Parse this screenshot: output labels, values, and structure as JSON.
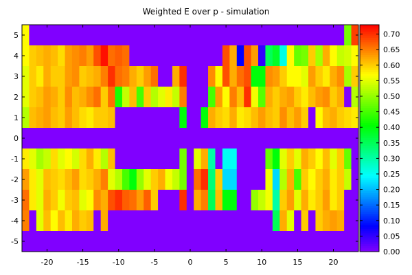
{
  "chart_data": {
    "type": "heatmap",
    "title": "Weighted E over p - simulation",
    "xlabel": "",
    "ylabel": "",
    "xlim": [
      -23.5,
      23.5
    ],
    "ylim": [
      -5.5,
      5.5
    ],
    "x_ticks": [
      -20,
      -15,
      -10,
      -5,
      0,
      5,
      10,
      15,
      20
    ],
    "x_tick_labels": [
      "-20",
      "-15",
      "-10",
      "-5",
      "0",
      "5",
      "10",
      "15",
      "20"
    ],
    "y_ticks": [
      5,
      4,
      3,
      2,
      1,
      0,
      -1,
      -2,
      -3,
      -4,
      -5
    ],
    "y_tick_labels": [
      "5",
      "4",
      "3",
      "2",
      "1",
      "0",
      "-1",
      "-2",
      "-3",
      "-4",
      "-5"
    ],
    "colorbar": {
      "min": 0.0,
      "max": 0.73,
      "colormap": "rainbow",
      "ticks": [
        0.0,
        0.05,
        0.1,
        0.15,
        0.2,
        0.25,
        0.3,
        0.35,
        0.4,
        0.45,
        0.5,
        0.55,
        0.6,
        0.65,
        0.7
      ],
      "tick_labels": [
        "0.00",
        "0.05",
        "0.10",
        "0.15",
        "0.20",
        "0.25",
        "0.30",
        "0.35",
        "0.40",
        "0.45",
        "0.50",
        "0.55",
        "0.60",
        "0.65",
        "0.70"
      ]
    },
    "x": [
      -23,
      -22,
      -21,
      -20,
      -19,
      -18,
      -17,
      -16,
      -15,
      -14,
      -13,
      -12,
      -11,
      -10,
      -9,
      -8,
      -7,
      -6,
      -5,
      -4,
      -3,
      -2,
      -1,
      0,
      1,
      2,
      3,
      4,
      5,
      6,
      7,
      8,
      9,
      10,
      11,
      12,
      13,
      14,
      15,
      16,
      17,
      18,
      19,
      20,
      21,
      22,
      23
    ],
    "y": [
      5,
      4,
      3,
      2,
      1,
      0,
      -1,
      -2,
      -3,
      -4,
      -5
    ],
    "z": [
      [
        0.57,
        0,
        0,
        0,
        0,
        0,
        0,
        0,
        0,
        0,
        0,
        0,
        0,
        0,
        0,
        0,
        0,
        0,
        0,
        0,
        0,
        0,
        0,
        0,
        0,
        0,
        0,
        0,
        0,
        0,
        0,
        0,
        0,
        0,
        0,
        0,
        0,
        0,
        0,
        0,
        0,
        0,
        0,
        0,
        0,
        0.48,
        0.69
      ],
      [
        0.57,
        0.6,
        0.61,
        0.62,
        0.61,
        0.59,
        0.63,
        0.64,
        0.65,
        0.63,
        0.68,
        0.72,
        0.66,
        0.67,
        0.66,
        0,
        0,
        0,
        0,
        0,
        0,
        0,
        0,
        0,
        0,
        0,
        0,
        0,
        0.68,
        0.62,
        0.08,
        0.68,
        0.63,
        0.05,
        0.35,
        0.38,
        0.26,
        0.57,
        0.47,
        0.48,
        0.6,
        0.51,
        0.62,
        0.57,
        0.53,
        0.54,
        0.57
      ],
      [
        0.55,
        0.6,
        0.58,
        0.62,
        0.6,
        0.6,
        0.63,
        0.64,
        0.6,
        0.61,
        0.62,
        0.65,
        0.7,
        0.66,
        0.65,
        0.62,
        0.6,
        0.63,
        0.66,
        0,
        0,
        0.62,
        0.7,
        0,
        0,
        0,
        0.64,
        0.57,
        0.68,
        0.62,
        0.66,
        0.68,
        0.4,
        0.4,
        0.64,
        0.63,
        0.6,
        0.57,
        0.57,
        0.55,
        0.63,
        0.6,
        0.58,
        0.62,
        0.64,
        0.51,
        0.6
      ],
      [
        0.55,
        0.6,
        0.61,
        0.63,
        0.62,
        0.6,
        0.64,
        0.61,
        0.62,
        0.64,
        0.66,
        0.6,
        0.66,
        0.42,
        0.53,
        0.61,
        0.45,
        0.6,
        0.52,
        0.55,
        0.58,
        0.53,
        0.65,
        0,
        0,
        0,
        0.45,
        0.63,
        0.57,
        0.65,
        0.61,
        0.7,
        0.56,
        0.46,
        0.62,
        0.6,
        0.62,
        0.63,
        0.6,
        0.58,
        0.61,
        0.63,
        0.64,
        0.6,
        0.62,
        0,
        0.52
      ],
      [
        0.52,
        0.61,
        0.62,
        0.63,
        0.61,
        0.6,
        0.63,
        0.61,
        0.59,
        0.58,
        0.6,
        0.6,
        0.61,
        0,
        0,
        0,
        0,
        0,
        0,
        0,
        0,
        0,
        0.4,
        0,
        0,
        0.4,
        0.62,
        0.6,
        0.59,
        0.62,
        0.58,
        0.59,
        0.61,
        0.63,
        0.61,
        0.6,
        0.64,
        0.61,
        0.63,
        0.6,
        0,
        0.57,
        0.61,
        0.62,
        0.6,
        0.59,
        0.58
      ],
      [
        0,
        0,
        0,
        0,
        0,
        0,
        0,
        0,
        0,
        0,
        0,
        0,
        0,
        0,
        0,
        0,
        0,
        0,
        0,
        0,
        0,
        0,
        0,
        0,
        0,
        0,
        0,
        0,
        0,
        0,
        0,
        0,
        0,
        0,
        0,
        0,
        0,
        0,
        0,
        0,
        0,
        0,
        0,
        0,
        0,
        0,
        0
      ],
      [
        0.58,
        0.55,
        0.51,
        0.53,
        0.59,
        0.55,
        0.57,
        0.54,
        0.59,
        0.62,
        0.58,
        0.52,
        0.61,
        0,
        0,
        0,
        0,
        0,
        0,
        0,
        0,
        0,
        0.48,
        0,
        0.55,
        0.62,
        0.3,
        0,
        0.25,
        0.25,
        0,
        0,
        0,
        0,
        0.47,
        0.4,
        0.55,
        0.6,
        0.55,
        0.62,
        0.6,
        0.57,
        0.61,
        0.55,
        0.6,
        0.47,
        0
      ],
      [
        0.63,
        0.58,
        0.55,
        0.61,
        0.6,
        0.59,
        0.61,
        0.63,
        0.59,
        0.6,
        0.62,
        0.65,
        0.55,
        0.52,
        0.45,
        0.4,
        0.5,
        0.55,
        0.6,
        0.62,
        0.56,
        0.53,
        0.48,
        0,
        0.66,
        0.7,
        0.33,
        0.6,
        0.22,
        0.22,
        0,
        0,
        0,
        0,
        0.56,
        0.22,
        0.52,
        0.62,
        0.45,
        0.6,
        0.57,
        0.6,
        0.62,
        0.58,
        0.6,
        0.53,
        0
      ],
      [
        0.66,
        0.58,
        0.55,
        0.62,
        0.6,
        0.56,
        0.6,
        0.61,
        0.55,
        0.57,
        0.64,
        0.62,
        0.68,
        0.7,
        0.67,
        0.66,
        0.63,
        0.67,
        0.6,
        0,
        0,
        0,
        0.7,
        0,
        0.62,
        0.65,
        0.35,
        0.61,
        0.4,
        0.4,
        0,
        0,
        0.5,
        0.53,
        0.56,
        0.3,
        0.6,
        0.63,
        0.55,
        0.62,
        0.58,
        0.6,
        0.63,
        0.58,
        0.6,
        0,
        0
      ],
      [
        0.65,
        0,
        0.55,
        0.61,
        0.57,
        0.61,
        0.58,
        0.62,
        0.6,
        0.61,
        0,
        0.62,
        0,
        0,
        0,
        0,
        0,
        0,
        0,
        0,
        0,
        0,
        0,
        0,
        0,
        0,
        0,
        0,
        0,
        0,
        0,
        0,
        0,
        0,
        0,
        0.35,
        0.62,
        0.55,
        0,
        0.6,
        0,
        0.6,
        0.62,
        0.63,
        0.62,
        0,
        0
      ],
      [
        0,
        0,
        0,
        0,
        0,
        0,
        0,
        0,
        0,
        0,
        0,
        0,
        0,
        0,
        0,
        0,
        0,
        0,
        0,
        0,
        0,
        0,
        0,
        0,
        0,
        0,
        0,
        0,
        0,
        0,
        0,
        0,
        0,
        0,
        0,
        0,
        0,
        0,
        0,
        0,
        0,
        0,
        0,
        0,
        0,
        0,
        0
      ]
    ]
  }
}
